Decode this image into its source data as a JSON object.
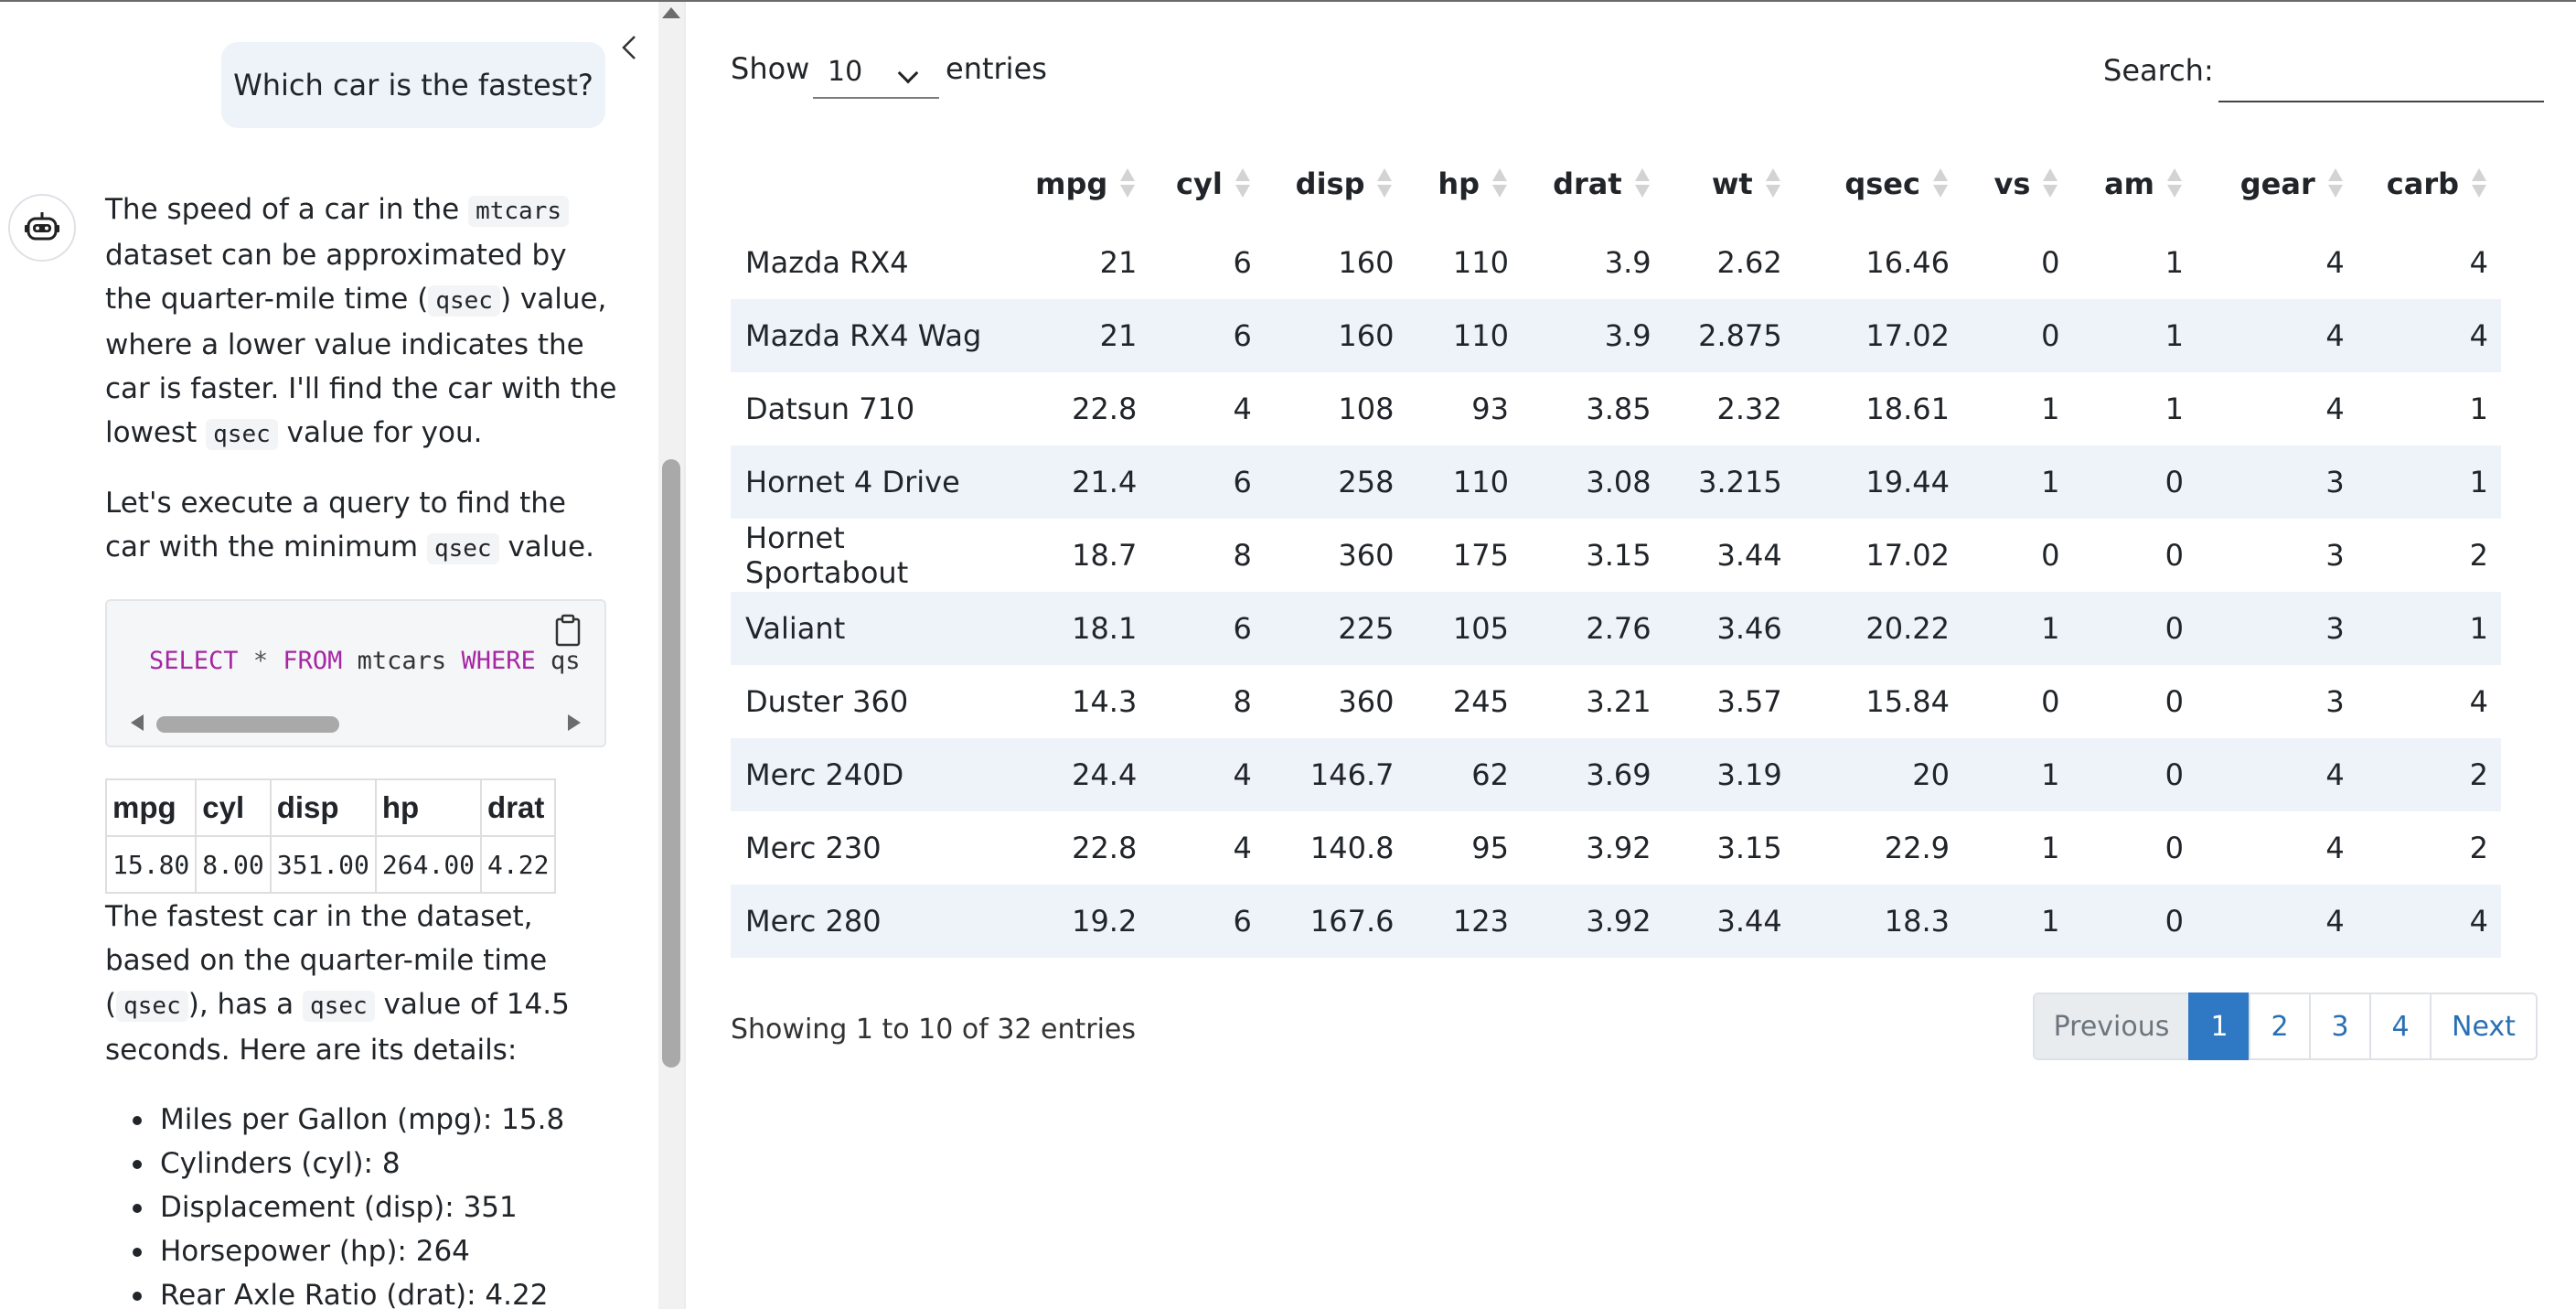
{
  "chat": {
    "user_message": "Which car is the fastest?",
    "p1_a": "The speed of a car in the ",
    "p1_code1": "mtcars",
    "p1_b": " dataset can be approximated by the quarter-mile time (",
    "p1_code2": "qsec",
    "p1_c": ") value, where a lower value indicates the car is faster. I'll find the car with the lowest ",
    "p1_code3": "qsec",
    "p1_d": " value for you.",
    "p2_a": "Let's execute a query to find the car with the minimum ",
    "p2_code": "qsec",
    "p2_b": " value.",
    "code": {
      "kw1": "SELECT",
      "op": "*",
      "kw2": "FROM",
      "table": "mtcars",
      "kw3": "WHERE",
      "rest": "qs"
    },
    "result_table": {
      "headers": [
        "mpg",
        "cyl",
        "disp",
        "hp",
        "drat"
      ],
      "row": [
        "15.80",
        "8.00",
        "351.00",
        "264.00",
        "4.22"
      ]
    },
    "p3_a": "The fastest car in the dataset, based on the quarter-mile time (",
    "p3_code1": "qsec",
    "p3_b": "), has a ",
    "p3_code2": "qsec",
    "p3_c": " value of 14.5 seconds. Here are its details:",
    "details": [
      "Miles per Gallon (mpg): 15.8",
      "Cylinders (cyl): 8",
      "Displacement (disp): 351",
      "Horsepower (hp): 264",
      "Rear Axle Ratio (drat): 4.22"
    ]
  },
  "datatable": {
    "show_label": "Show",
    "page_length": "10",
    "entries_label": "entries",
    "search_label": "Search:",
    "search_value": "",
    "columns": [
      "",
      "mpg",
      "cyl",
      "disp",
      "hp",
      "drat",
      "wt",
      "qsec",
      "vs",
      "am",
      "gear",
      "carb"
    ],
    "rows": [
      [
        "Mazda RX4",
        "21",
        "6",
        "160",
        "110",
        "3.9",
        "2.62",
        "16.46",
        "0",
        "1",
        "4",
        "4"
      ],
      [
        "Mazda RX4 Wag",
        "21",
        "6",
        "160",
        "110",
        "3.9",
        "2.875",
        "17.02",
        "0",
        "1",
        "4",
        "4"
      ],
      [
        "Datsun 710",
        "22.8",
        "4",
        "108",
        "93",
        "3.85",
        "2.32",
        "18.61",
        "1",
        "1",
        "4",
        "1"
      ],
      [
        "Hornet 4 Drive",
        "21.4",
        "6",
        "258",
        "110",
        "3.08",
        "3.215",
        "19.44",
        "1",
        "0",
        "3",
        "1"
      ],
      [
        "Hornet Sportabout",
        "18.7",
        "8",
        "360",
        "175",
        "3.15",
        "3.44",
        "17.02",
        "0",
        "0",
        "3",
        "2"
      ],
      [
        "Valiant",
        "18.1",
        "6",
        "225",
        "105",
        "2.76",
        "3.46",
        "20.22",
        "1",
        "0",
        "3",
        "1"
      ],
      [
        "Duster 360",
        "14.3",
        "8",
        "360",
        "245",
        "3.21",
        "3.57",
        "15.84",
        "0",
        "0",
        "3",
        "4"
      ],
      [
        "Merc 240D",
        "24.4",
        "4",
        "146.7",
        "62",
        "3.69",
        "3.19",
        "20",
        "1",
        "0",
        "4",
        "2"
      ],
      [
        "Merc 230",
        "22.8",
        "4",
        "140.8",
        "95",
        "3.92",
        "3.15",
        "22.9",
        "1",
        "0",
        "4",
        "2"
      ],
      [
        "Merc 280",
        "19.2",
        "6",
        "167.6",
        "123",
        "3.92",
        "3.44",
        "18.3",
        "1",
        "0",
        "4",
        "4"
      ]
    ],
    "info": "Showing 1 to 10 of 32 entries",
    "pagination": {
      "previous": "Previous",
      "pages": [
        "1",
        "2",
        "3",
        "4"
      ],
      "active": "1",
      "next": "Next"
    }
  },
  "icons": {
    "collapse": "chevron-left-icon",
    "avatar": "robot-icon",
    "copy": "clipboard-icon"
  },
  "colors": {
    "user_bubble": "#edf3f9",
    "row_stripe": "#eef3fa",
    "accent": "#2f78c4",
    "sql_keyword": "#a626a4"
  }
}
